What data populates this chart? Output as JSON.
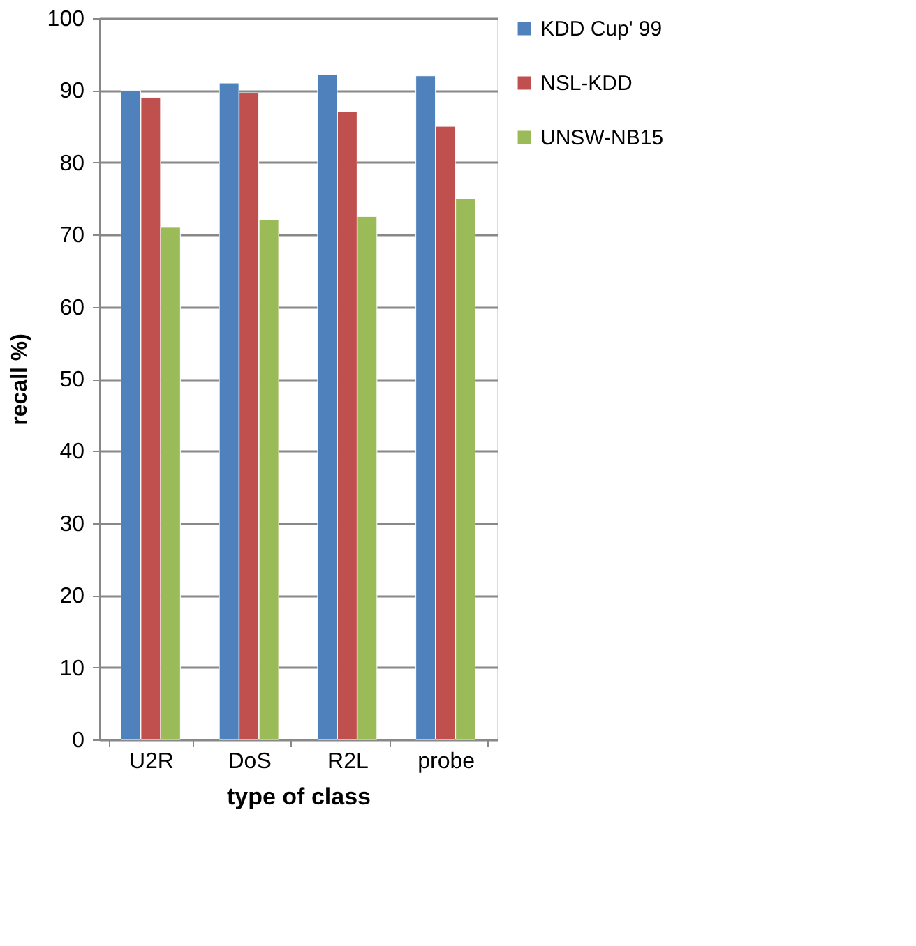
{
  "chart_data": {
    "type": "bar",
    "xlabel": "type of class",
    "ylabel": "recall %)",
    "categories": [
      "U2R",
      "DoS",
      "R2L",
      "probe"
    ],
    "series": [
      {
        "name": "KDD Cup' 99",
        "color": "#4f81bd",
        "values": [
          90,
          91,
          92.2,
          92
        ]
      },
      {
        "name": "NSL-KDD",
        "color": "#c0504d",
        "values": [
          89,
          89.6,
          87,
          85
        ]
      },
      {
        "name": "UNSW-NB15",
        "color": "#9bbb59",
        "values": [
          71,
          72,
          72.5,
          75
        ]
      }
    ],
    "ylim": [
      0,
      100
    ],
    "yticks": [
      0,
      10,
      20,
      30,
      40,
      50,
      60,
      70,
      80,
      90,
      100
    ],
    "grid": "y",
    "legend": "right"
  }
}
